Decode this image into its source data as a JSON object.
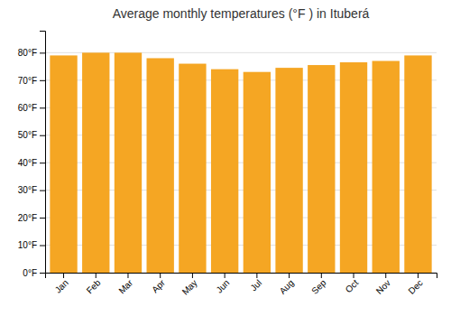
{
  "chart_data": {
    "type": "bar",
    "title": "Average monthly temperatures (°F ) in Ituberá",
    "categories": [
      "Jan",
      "Feb",
      "Mar",
      "Apr",
      "May",
      "Jun",
      "Jul",
      "Aug",
      "Sep",
      "Oct",
      "Nov",
      "Dec"
    ],
    "values": [
      79,
      80,
      80,
      78,
      76,
      74,
      73,
      74.5,
      75.5,
      76.5,
      77,
      79
    ],
    "color": "#F5A623",
    "ylim": [
      0,
      88
    ],
    "yticks": [
      {
        "value": 0,
        "label": "0°F"
      },
      {
        "value": 10,
        "label": "10°F"
      },
      {
        "value": 20,
        "label": "20°F"
      },
      {
        "value": 30,
        "label": "30°F"
      },
      {
        "value": 40,
        "label": "40°F"
      },
      {
        "value": 50,
        "label": "50°F"
      },
      {
        "value": 60,
        "label": "60°F"
      },
      {
        "value": 70,
        "label": "70°F"
      },
      {
        "value": 80,
        "label": "80°F"
      }
    ],
    "grid": true
  }
}
